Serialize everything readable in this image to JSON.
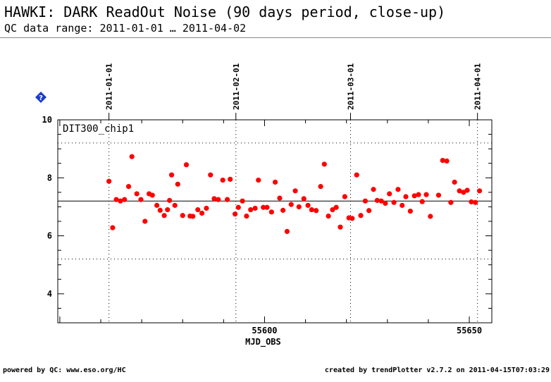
{
  "header": {
    "title": "HAWKI: DARK ReadOut Noise (90 days period, close-up)",
    "subtitle": "QC data range: 2011-01-01 … 2011-04-02"
  },
  "footer": {
    "left": "powered by QC: www.eso.org/HC",
    "right": "created by trendPlotter v2.7.2 on 2011-04-15T07:03:29"
  },
  "icons": {
    "help": "help-diamond-icon"
  },
  "colors": {
    "points": "#ff0000",
    "help_icon": "#1a3cc8"
  },
  "chart_data": {
    "type": "scatter",
    "panel_label": "DIT300_chip1",
    "xlabel": "MJD_OBS",
    "ylabel": "",
    "xlim": [
      55549.5,
      55655.5
    ],
    "ylim": [
      3,
      10
    ],
    "x_ticks": [
      55600,
      55650
    ],
    "y_ticks": [
      4,
      6,
      8,
      10
    ],
    "reference_line": 7.2,
    "limit_lines": [
      5.2,
      9.2
    ],
    "date_markers": [
      {
        "label": "2011-01-01",
        "mjd": 55562
      },
      {
        "label": "2011-02-01",
        "mjd": 55593
      },
      {
        "label": "2011-03-01",
        "mjd": 55621
      },
      {
        "label": "2011-04-01",
        "mjd": 55652
      }
    ],
    "points": {
      "x": [
        55562.0,
        55562.9,
        55563.8,
        55564.8,
        55565.8,
        55566.8,
        55567.6,
        55568.8,
        55569.8,
        55570.8,
        55571.8,
        55572.6,
        55573.7,
        55574.5,
        55575.5,
        55576.3,
        55576.8,
        55577.3,
        55578.1,
        55578.8,
        55580.0,
        55580.9,
        55581.8,
        55582.5,
        55583.7,
        55584.7,
        55585.8,
        55586.8,
        55587.7,
        55588.7,
        55589.8,
        55590.9,
        55591.6,
        55592.8,
        55593.6,
        55594.6,
        55595.6,
        55596.6,
        55597.7,
        55598.5,
        55599.7,
        55600.6,
        55601.7,
        55602.6,
        55603.7,
        55604.5,
        55605.5,
        55606.5,
        55607.5,
        55608.4,
        55609.6,
        55610.6,
        55611.5,
        55612.6,
        55613.7,
        55614.6,
        55615.6,
        55616.6,
        55617.5,
        55618.5,
        55619.6,
        55620.6,
        55621.4,
        55622.5,
        55623.5,
        55624.6,
        55625.5,
        55626.6,
        55627.5,
        55628.5,
        55629.5,
        55630.5,
        55631.6,
        55632.6,
        55633.6,
        55634.5,
        55635.6,
        55636.6,
        55637.6,
        55638.5,
        55639.5,
        55640.5,
        55642.5,
        55643.5,
        55644.5,
        55645.5,
        55646.4,
        55647.6,
        55648.6,
        55649.5,
        55650.5,
        55651.5,
        55652.5
      ],
      "y": [
        7.88,
        6.28,
        7.25,
        7.2,
        7.25,
        7.7,
        8.73,
        7.45,
        7.25,
        6.5,
        7.45,
        7.4,
        7.05,
        6.88,
        6.7,
        6.9,
        7.22,
        8.1,
        7.05,
        7.78,
        6.7,
        8.45,
        6.68,
        6.67,
        6.9,
        6.78,
        6.95,
        8.1,
        7.28,
        7.25,
        7.92,
        7.25,
        7.95,
        6.75,
        6.98,
        7.2,
        6.68,
        6.9,
        6.95,
        7.92,
        6.98,
        6.98,
        6.82,
        7.85,
        7.3,
        6.88,
        6.15,
        7.08,
        7.55,
        7.0,
        7.28,
        7.05,
        6.9,
        6.87,
        7.7,
        8.47,
        6.68,
        6.9,
        6.98,
        6.3,
        7.35,
        6.62,
        6.6,
        8.1,
        6.7,
        7.2,
        6.87,
        7.6,
        7.22,
        7.2,
        7.12,
        7.45,
        7.15,
        7.6,
        7.05,
        7.35,
        6.85,
        7.38,
        7.42,
        7.18,
        7.42,
        6.67,
        7.4,
        8.6,
        8.58,
        7.15,
        7.85,
        7.55,
        7.5,
        7.57,
        7.17,
        7.15,
        7.55
      ]
    }
  }
}
